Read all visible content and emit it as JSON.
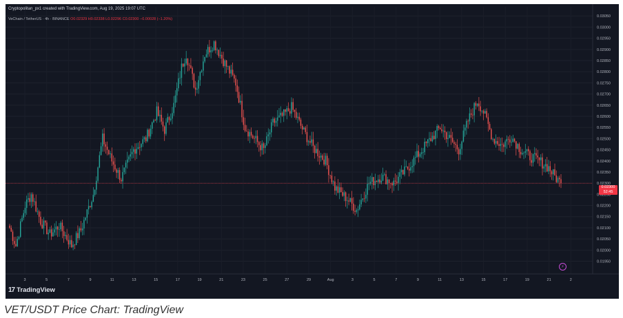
{
  "header": {
    "created_by": "Cryptopolitan_px1 created with TradingView.com, Aug 19, 2025 19:07 UTC"
  },
  "symbol": {
    "name": "VeChain / TetherUS · 4h · BINANCE",
    "ohlc": "O0.02329 H0.02338 L0.02296 C0.02300 −0.00028 (−1.20%)"
  },
  "last_price": {
    "value": "0.02300",
    "countdown": "52:45",
    "color": "#f23645"
  },
  "logo": {
    "mark": "17",
    "text": "TradingView"
  },
  "caption": "VET/USDT Price Chart: TradingView",
  "colors": {
    "background": "#131722",
    "up": "#26a69a",
    "down": "#ef5350",
    "text": "#b2b5be"
  },
  "chart_data": {
    "type": "candlestick",
    "title": "VeChain / TetherUS · 4h · BINANCE",
    "ylim": [
      0.0193,
      0.0306
    ],
    "y_ticks": [
      "0.03050",
      "0.03000",
      "0.02950",
      "0.02900",
      "0.02850",
      "0.02800",
      "0.02750",
      "0.02700",
      "0.02650",
      "0.02600",
      "0.02550",
      "0.02500",
      "0.02450",
      "0.02400",
      "0.02350",
      "0.02300",
      "0.02250",
      "0.02200",
      "0.02150",
      "0.02100",
      "0.02050",
      "0.02000",
      "0.01950"
    ],
    "y_tick_values": [
      0.0305,
      0.03,
      0.0295,
      0.029,
      0.0285,
      0.028,
      0.0275,
      0.027,
      0.0265,
      0.026,
      0.0255,
      0.025,
      0.0245,
      0.024,
      0.0235,
      0.023,
      0.0225,
      0.022,
      0.0215,
      0.021,
      0.0205,
      0.02,
      0.0195
    ],
    "x_ticks": [
      "3",
      "5",
      "7",
      "9",
      "11",
      "13",
      "15",
      "17",
      "19",
      "21",
      "23",
      "25",
      "27",
      "29",
      "Aug",
      "3",
      "5",
      "7",
      "9",
      "11",
      "13",
      "15",
      "17",
      "19",
      "21",
      "2"
    ],
    "anchors": [
      [
        0,
        0.021
      ],
      [
        4,
        0.0202
      ],
      [
        10,
        0.022
      ],
      [
        14,
        0.0225
      ],
      [
        20,
        0.0213
      ],
      [
        26,
        0.0207
      ],
      [
        32,
        0.0211
      ],
      [
        40,
        0.0202
      ],
      [
        46,
        0.0209
      ],
      [
        54,
        0.0225
      ],
      [
        60,
        0.025
      ],
      [
        66,
        0.024
      ],
      [
        72,
        0.0232
      ],
      [
        80,
        0.0245
      ],
      [
        88,
        0.025
      ],
      [
        95,
        0.0262
      ],
      [
        100,
        0.0254
      ],
      [
        106,
        0.0265
      ],
      [
        111,
        0.0282
      ],
      [
        114,
        0.0288
      ],
      [
        120,
        0.0272
      ],
      [
        126,
        0.0288
      ],
      [
        132,
        0.0293
      ],
      [
        138,
        0.0285
      ],
      [
        146,
        0.0275
      ],
      [
        152,
        0.0255
      ],
      [
        158,
        0.025
      ],
      [
        164,
        0.0245
      ],
      [
        170,
        0.0257
      ],
      [
        176,
        0.026
      ],
      [
        182,
        0.0264
      ],
      [
        190,
        0.0253
      ],
      [
        196,
        0.0246
      ],
      [
        204,
        0.024
      ],
      [
        210,
        0.0228
      ],
      [
        218,
        0.0223
      ],
      [
        224,
        0.0218
      ],
      [
        232,
        0.023
      ],
      [
        240,
        0.0233
      ],
      [
        248,
        0.023
      ],
      [
        256,
        0.0236
      ],
      [
        264,
        0.0243
      ],
      [
        272,
        0.025
      ],
      [
        278,
        0.0255
      ],
      [
        284,
        0.025
      ],
      [
        290,
        0.0245
      ],
      [
        296,
        0.0258
      ],
      [
        302,
        0.0267
      ],
      [
        306,
        0.0262
      ],
      [
        312,
        0.025
      ],
      [
        318,
        0.0247
      ],
      [
        324,
        0.0251
      ],
      [
        330,
        0.0245
      ],
      [
        336,
        0.0242
      ],
      [
        342,
        0.024
      ],
      [
        348,
        0.0237
      ],
      [
        352,
        0.0233
      ],
      [
        356,
        0.023
      ]
    ],
    "last_close": 0.023
  }
}
